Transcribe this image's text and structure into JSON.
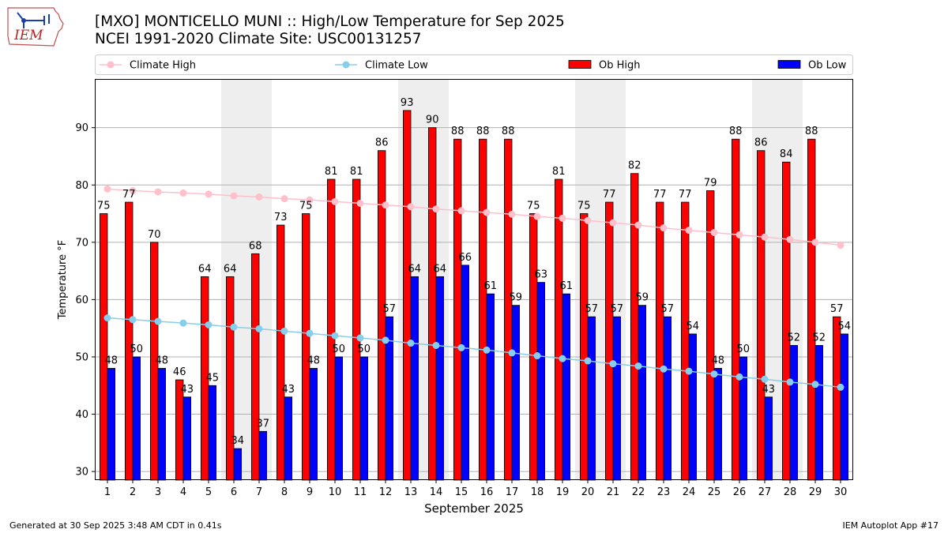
{
  "header": {
    "title_line1": "[MXO] MONTICELLO MUNI :: High/Low Temperature for Sep 2025",
    "title_line2": "NCEI 1991-2020 Climate Site: USC00131257",
    "logo_text": "IEM"
  },
  "footer": {
    "generated": "Generated at 30 Sep 2025 3:48 AM CDT in 0.41s",
    "app": "IEM Autoplot App #17"
  },
  "colors": {
    "ob_high": "#ff0000",
    "ob_low": "#0000ff",
    "climate_high": "#ffc0cb",
    "climate_low": "#87ceeb",
    "weekend_shade": "#eeeeee",
    "grid": "#b0b0b0"
  },
  "chart_data": {
    "type": "bar",
    "xlabel": "September 2025",
    "ylabel": "Temperature °F",
    "ylim": [
      28.5,
      98.5
    ],
    "yticks": [
      30,
      40,
      50,
      60,
      70,
      80,
      90
    ],
    "grid": "horizontal",
    "legend_position": "top",
    "categories": [
      1,
      2,
      3,
      4,
      5,
      6,
      7,
      8,
      9,
      10,
      11,
      12,
      13,
      14,
      15,
      16,
      17,
      18,
      19,
      20,
      21,
      22,
      23,
      24,
      25,
      26,
      27,
      28,
      29,
      30
    ],
    "shaded_days": [
      6,
      7,
      13,
      14,
      20,
      21,
      27,
      28
    ],
    "series": [
      {
        "name": "Climate High",
        "kind": "line",
        "color": "#ffc0cb",
        "values": [
          79.3,
          79.0,
          78.8,
          78.6,
          78.4,
          78.1,
          77.9,
          77.6,
          77.4,
          77.1,
          76.8,
          76.5,
          76.2,
          75.8,
          75.5,
          75.2,
          74.9,
          74.5,
          74.2,
          73.8,
          73.4,
          73.0,
          72.5,
          72.1,
          71.7,
          71.3,
          70.9,
          70.5,
          70.0,
          69.5
        ]
      },
      {
        "name": "Climate Low",
        "kind": "line",
        "color": "#87ceeb",
        "values": [
          56.8,
          56.5,
          56.2,
          55.9,
          55.6,
          55.2,
          54.9,
          54.5,
          54.1,
          53.7,
          53.3,
          52.9,
          52.4,
          52.0,
          51.6,
          51.2,
          50.7,
          50.2,
          49.7,
          49.3,
          48.8,
          48.4,
          47.9,
          47.5,
          47.0,
          46.5,
          46.1,
          45.6,
          45.2,
          44.7
        ]
      },
      {
        "name": "Ob High",
        "kind": "bar",
        "color": "#ff0000",
        "values": [
          75,
          77,
          70,
          46,
          64,
          64,
          68,
          73,
          75,
          81,
          81,
          86,
          93,
          90,
          88,
          88,
          88,
          75,
          81,
          75,
          77,
          82,
          77,
          77,
          79,
          88,
          86,
          84,
          88,
          57
        ]
      },
      {
        "name": "Ob Low",
        "kind": "bar",
        "color": "#0000ff",
        "values": [
          48,
          50,
          48,
          43,
          45,
          34,
          37,
          43,
          48,
          50,
          50,
          57,
          64,
          64,
          66,
          61,
          59,
          63,
          61,
          57,
          57,
          59,
          57,
          54,
          48,
          50,
          43,
          52,
          52,
          54
        ]
      }
    ]
  }
}
